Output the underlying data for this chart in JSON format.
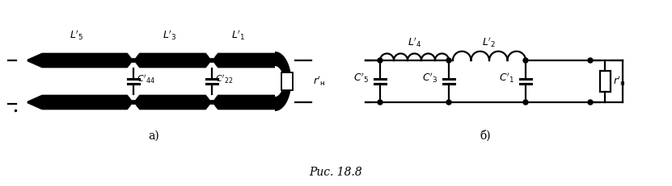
{
  "fig_width": 8.31,
  "fig_height": 2.31,
  "dpi": 100,
  "bg_color": "#ffffff",
  "caption": "Рис. 18.8",
  "lw": 1.6,
  "black": "#000000"
}
